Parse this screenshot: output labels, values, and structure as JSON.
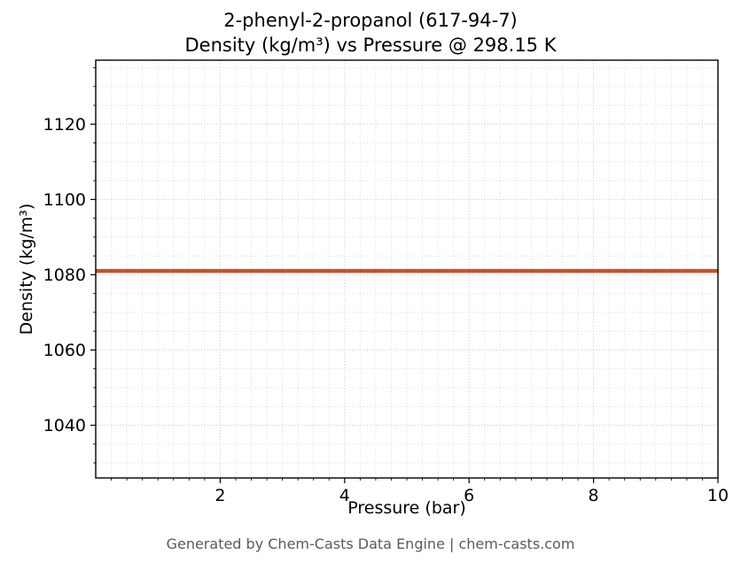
{
  "figure": {
    "title": "2-phenyl-2-propanol (617-94-7)",
    "subtitle": "Density (kg/m³) vs Pressure @ 298.15 K",
    "footer": "Generated by Chem-Casts Data Engine | chem-casts.com"
  },
  "chart_data": {
    "type": "line",
    "title": "2-phenyl-2-propanol (617-94-7)",
    "subtitle": "Density (kg/m³) vs Pressure @ 298.15 K",
    "xlabel": "Pressure (bar)",
    "ylabel": "Density (kg/m³)",
    "xlim": [
      0,
      10
    ],
    "ylim": [
      1026,
      1137
    ],
    "xticks": [
      2,
      4,
      6,
      8,
      10
    ],
    "yticks": [
      1040,
      1060,
      1080,
      1100,
      1120
    ],
    "x_minor_step": 0.25,
    "y_minor_step": 5,
    "grid": "both-dotted",
    "legend": "none",
    "series": [
      {
        "name": "density",
        "color": "#c8502d",
        "line_width": 4.5,
        "x": [
          0,
          10
        ],
        "y": [
          1081,
          1081
        ]
      }
    ],
    "annotations": []
  },
  "colors": {
    "line": "#c8502d",
    "grid_major": "#c3c3c3",
    "grid_minor": "#dadada",
    "frame": "#000000",
    "footer_text": "#5a5a5a"
  }
}
